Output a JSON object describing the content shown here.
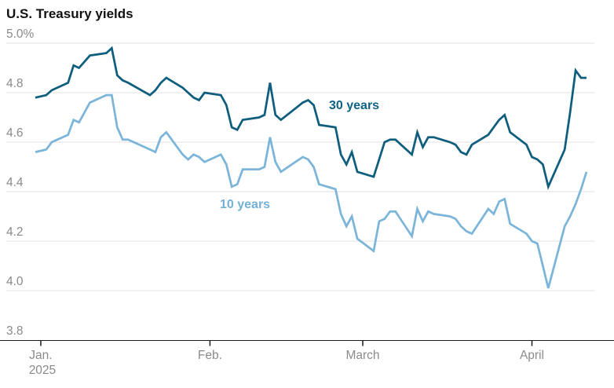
{
  "header": {
    "title": "U.S. Treasury yields"
  },
  "chart_data": {
    "type": "line",
    "title": "U.S. Treasury yields",
    "grid": true,
    "legend_position": "inline-labels-on-lines",
    "colors": {
      "series_30y_line": "#0f5e7d",
      "series_30y_label": "#0e6285",
      "series_10y_line": "#7cb5da",
      "series_10y_label": "#74b0d3",
      "gridline": "#e0e0e0",
      "axis_line": "#1a1a1a",
      "axis_text": "#8a8a8a",
      "title_text": "#121212"
    },
    "x_axis": {
      "start_date": "2024-12-31",
      "end_date": "2025-04-11",
      "ticks": [
        {
          "date": "2025-01-01",
          "label": "Jan.",
          "sublabel": "2025"
        },
        {
          "date": "2025-02-01",
          "label": "Feb.",
          "sublabel": ""
        },
        {
          "date": "2025-03-01",
          "label": "March",
          "sublabel": ""
        },
        {
          "date": "2025-04-01",
          "label": "April",
          "sublabel": ""
        }
      ]
    },
    "y_axis": {
      "unit": "percent",
      "min": 3.8,
      "max": 5.0,
      "ticks": [
        {
          "value": 5.0,
          "label": "5.0%"
        },
        {
          "value": 4.8,
          "label": "4.8"
        },
        {
          "value": 4.6,
          "label": "4.6"
        },
        {
          "value": 4.4,
          "label": "4.4"
        },
        {
          "value": 4.2,
          "label": "4.2"
        },
        {
          "value": 4.0,
          "label": "4.0"
        },
        {
          "value": 3.8,
          "label": "3.8"
        }
      ]
    },
    "dates": [
      "2024-12-31",
      "2025-01-02",
      "2025-01-03",
      "2025-01-06",
      "2025-01-07",
      "2025-01-08",
      "2025-01-10",
      "2025-01-13",
      "2025-01-14",
      "2025-01-15",
      "2025-01-16",
      "2025-01-17",
      "2025-01-21",
      "2025-01-22",
      "2025-01-23",
      "2025-01-24",
      "2025-01-27",
      "2025-01-28",
      "2025-01-29",
      "2025-01-30",
      "2025-01-31",
      "2025-02-03",
      "2025-02-04",
      "2025-02-05",
      "2025-02-06",
      "2025-02-07",
      "2025-02-10",
      "2025-02-11",
      "2025-02-12",
      "2025-02-13",
      "2025-02-14",
      "2025-02-18",
      "2025-02-19",
      "2025-02-20",
      "2025-02-21",
      "2025-02-24",
      "2025-02-25",
      "2025-02-26",
      "2025-02-27",
      "2025-02-28",
      "2025-03-03",
      "2025-03-04",
      "2025-03-05",
      "2025-03-06",
      "2025-03-07",
      "2025-03-10",
      "2025-03-11",
      "2025-03-12",
      "2025-03-13",
      "2025-03-14",
      "2025-03-17",
      "2025-03-18",
      "2025-03-19",
      "2025-03-20",
      "2025-03-21",
      "2025-03-24",
      "2025-03-25",
      "2025-03-26",
      "2025-03-27",
      "2025-03-28",
      "2025-03-31",
      "2025-04-01",
      "2025-04-02",
      "2025-04-03",
      "2025-04-04",
      "2025-04-07",
      "2025-04-08",
      "2025-04-09",
      "2025-04-10",
      "2025-04-11"
    ],
    "series": [
      {
        "name": "30 years",
        "color": "#0f5e7d",
        "values": [
          4.78,
          4.79,
          4.81,
          4.84,
          4.91,
          4.9,
          4.95,
          4.96,
          4.98,
          4.87,
          4.85,
          4.84,
          4.79,
          4.81,
          4.84,
          4.86,
          4.82,
          4.8,
          4.78,
          4.77,
          4.8,
          4.79,
          4.75,
          4.66,
          4.65,
          4.69,
          4.7,
          4.71,
          4.84,
          4.71,
          4.69,
          4.76,
          4.77,
          4.75,
          4.67,
          4.66,
          4.55,
          4.51,
          4.56,
          4.48,
          4.46,
          4.53,
          4.6,
          4.61,
          4.61,
          4.55,
          4.64,
          4.58,
          4.62,
          4.62,
          4.6,
          4.59,
          4.56,
          4.55,
          4.59,
          4.63,
          4.66,
          4.69,
          4.71,
          4.64,
          4.59,
          4.54,
          4.53,
          4.51,
          4.42,
          4.57,
          4.72,
          4.89,
          4.86,
          4.86
        ]
      },
      {
        "name": "10 years",
        "color": "#7cb5da",
        "values": [
          4.56,
          4.57,
          4.6,
          4.63,
          4.69,
          4.68,
          4.76,
          4.79,
          4.79,
          4.66,
          4.61,
          4.61,
          4.57,
          4.56,
          4.62,
          4.64,
          4.55,
          4.53,
          4.55,
          4.54,
          4.52,
          4.55,
          4.51,
          4.42,
          4.43,
          4.49,
          4.49,
          4.5,
          4.62,
          4.52,
          4.48,
          4.54,
          4.53,
          4.5,
          4.43,
          4.41,
          4.31,
          4.26,
          4.3,
          4.21,
          4.16,
          4.28,
          4.29,
          4.32,
          4.32,
          4.22,
          4.33,
          4.28,
          4.32,
          4.31,
          4.3,
          4.29,
          4.26,
          4.24,
          4.23,
          4.33,
          4.31,
          4.36,
          4.37,
          4.27,
          4.23,
          4.2,
          4.19,
          4.1,
          4.01,
          4.26,
          4.3,
          4.35,
          4.41,
          4.48
        ]
      }
    ]
  }
}
